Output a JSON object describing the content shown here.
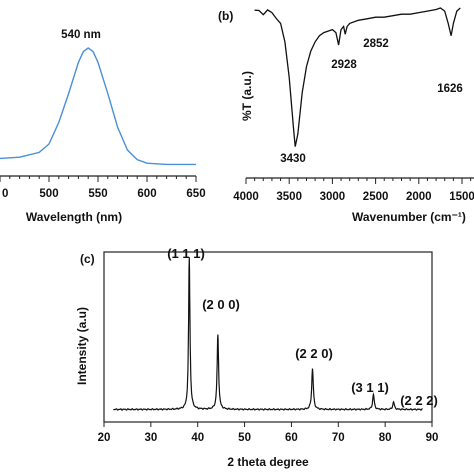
{
  "chart_data": [
    {
      "panel": "",
      "type": "line",
      "xlabel": "Wavelength (nm)",
      "ylabel": "",
      "xlim": [
        450,
        650
      ],
      "xticks": [
        "500",
        "550",
        "600",
        "650"
      ],
      "annotations": [
        {
          "text": "540 nm",
          "x": 540
        }
      ],
      "series": [
        {
          "color": "#4a8fd9",
          "x": [
            450,
            470,
            490,
            500,
            510,
            520,
            530,
            535,
            540,
            545,
            550,
            560,
            570,
            580,
            590,
            600,
            620,
            650
          ],
          "y": [
            0.08,
            0.09,
            0.13,
            0.2,
            0.38,
            0.62,
            0.88,
            0.97,
            1.0,
            0.97,
            0.88,
            0.62,
            0.34,
            0.15,
            0.07,
            0.04,
            0.03,
            0.03
          ]
        }
      ]
    },
    {
      "panel": "(b)",
      "type": "line",
      "xlabel": "Wavenumber  (cm⁻¹)",
      "ylabel": "%T (a.u.)",
      "xlim": [
        4000,
        1400
      ],
      "xticks": [
        "4000",
        "3500",
        "3000",
        "2500",
        "2000",
        "1500"
      ],
      "annotations": [
        {
          "text": "3430",
          "x": 3430
        },
        {
          "text": "2928",
          "x": 2928
        },
        {
          "text": "2852",
          "x": 2852
        },
        {
          "text": "1626",
          "x": 1626
        }
      ],
      "series": [
        {
          "color": "#111111",
          "x": [
            3900,
            3850,
            3800,
            3750,
            3700,
            3650,
            3600,
            3550,
            3500,
            3450,
            3430,
            3400,
            3350,
            3300,
            3250,
            3200,
            3150,
            3100,
            3050,
            3000,
            2960,
            2928,
            2900,
            2870,
            2852,
            2830,
            2800,
            2700,
            2600,
            2500,
            2400,
            2300,
            2200,
            2100,
            2000,
            1900,
            1800,
            1750,
            1700,
            1660,
            1626,
            1600,
            1560,
            1520
          ],
          "y": [
            98,
            99,
            96,
            98,
            97,
            94,
            90,
            78,
            55,
            22,
            10,
            18,
            45,
            62,
            72,
            78,
            82,
            84,
            85,
            86,
            84,
            76,
            86,
            88,
            83,
            88,
            90,
            92,
            93,
            94,
            94,
            95,
            96,
            96,
            97,
            98,
            99,
            100,
            98,
            90,
            82,
            90,
            98,
            100
          ]
        }
      ]
    },
    {
      "panel": "(c)",
      "type": "line",
      "xlabel": "2 theta degree",
      "ylabel": "Intensity (a.u)",
      "xlim": [
        20,
        90
      ],
      "xticks": [
        "20",
        "30",
        "40",
        "50",
        "60",
        "70",
        "80",
        "90"
      ],
      "annotations": [
        {
          "text": "(1 1 1)",
          "x": 38.2
        },
        {
          "text": "(2 0 0)",
          "x": 44.3
        },
        {
          "text": "(2 2 0)",
          "x": 64.5
        },
        {
          "text": "(3 1 1)",
          "x": 77.5
        },
        {
          "text": "(2 2 2)",
          "x": 82.5
        }
      ],
      "series": [
        {
          "color": "#111111",
          "peaks": [
            {
              "x": 38.2,
              "height": 100,
              "width": 0.35
            },
            {
              "x": 44.3,
              "height": 49,
              "width": 0.38
            },
            {
              "x": 64.5,
              "height": 27,
              "width": 0.4
            },
            {
              "x": 77.5,
              "height": 10,
              "width": 0.4
            },
            {
              "x": 81.8,
              "height": 5,
              "width": 0.4
            }
          ],
          "baseline": 3
        }
      ]
    }
  ]
}
